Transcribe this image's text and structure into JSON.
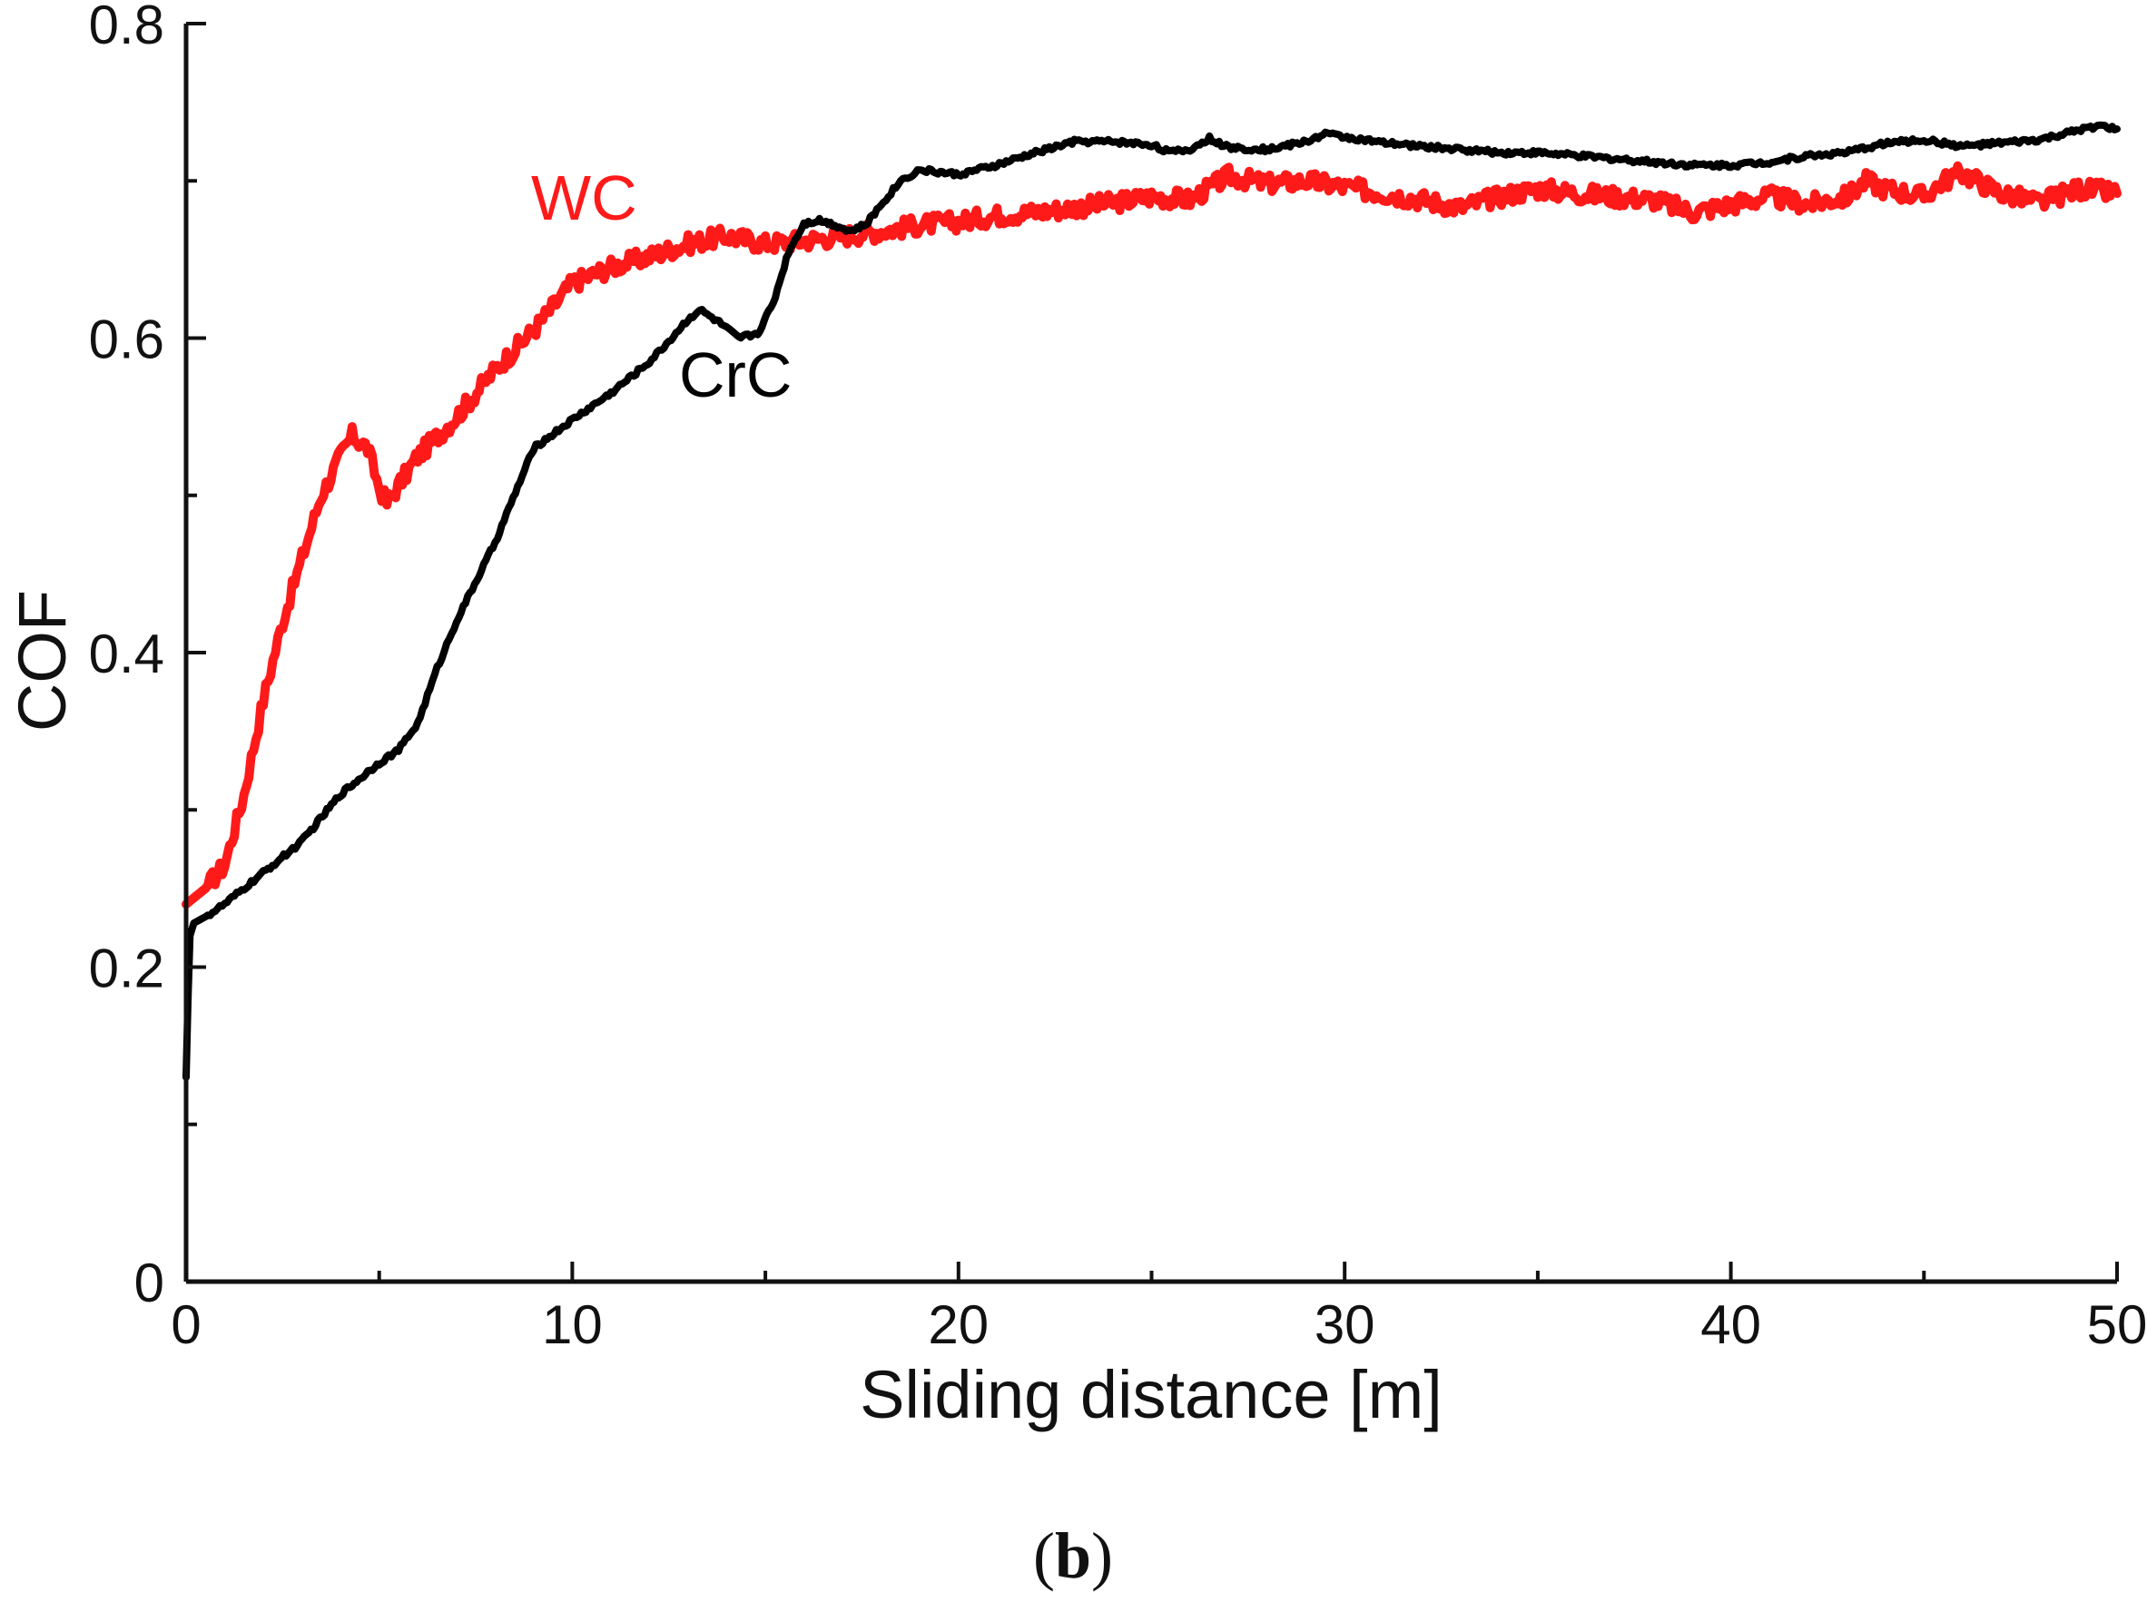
{
  "chart_data": {
    "type": "line",
    "xlabel": "Sliding distance [m]",
    "ylabel": "COF",
    "xlim": [
      0,
      50
    ],
    "ylim": [
      0,
      0.8
    ],
    "xticks": [
      0,
      10,
      20,
      30,
      40,
      50
    ],
    "xtick_labels": [
      "0",
      "10",
      "20",
      "30",
      "40",
      "50"
    ],
    "yticks": [
      0,
      0.2,
      0.4,
      0.6,
      0.8
    ],
    "ytick_labels": [
      "0",
      "0.2",
      "0.4",
      "0.6",
      "0.8"
    ],
    "grid": false,
    "panel_label": {
      "open": "(",
      "letter": "b",
      "close": ")"
    },
    "series": [
      {
        "name": "WC",
        "label": "WC",
        "color": "#ff1a1a",
        "noise": 0.006,
        "x": [
          0,
          0.5,
          1,
          1.5,
          2,
          2.5,
          3,
          3.5,
          4,
          4.3,
          4.7,
          5,
          5.2,
          5.6,
          6,
          7,
          8,
          9,
          10,
          11,
          12,
          13,
          14,
          15,
          16,
          17,
          18,
          19,
          20,
          21,
          22,
          23,
          24,
          25,
          26,
          27,
          28,
          29,
          30,
          31,
          32,
          33,
          34,
          35,
          36,
          37,
          38,
          39,
          40,
          41,
          42,
          43,
          43.5,
          44,
          45,
          45.5,
          46,
          47,
          48,
          49,
          50
        ],
        "y": [
          0.24,
          0.25,
          0.265,
          0.31,
          0.37,
          0.42,
          0.46,
          0.5,
          0.525,
          0.538,
          0.53,
          0.505,
          0.495,
          0.51,
          0.525,
          0.55,
          0.58,
          0.605,
          0.635,
          0.645,
          0.652,
          0.66,
          0.665,
          0.66,
          0.662,
          0.665,
          0.668,
          0.672,
          0.674,
          0.678,
          0.68,
          0.683,
          0.686,
          0.69,
          0.688,
          0.703,
          0.698,
          0.7,
          0.696,
          0.692,
          0.688,
          0.683,
          0.69,
          0.695,
          0.692,
          0.69,
          0.688,
          0.68,
          0.685,
          0.69,
          0.685,
          0.69,
          0.7,
          0.695,
          0.69,
          0.7,
          0.705,
          0.692,
          0.686,
          0.695,
          0.692
        ]
      },
      {
        "name": "CrC",
        "label": "CrC",
        "color": "#000000",
        "noise": 0.0015,
        "x": [
          0,
          0.05,
          0.1,
          0.2,
          0.5,
          1,
          1.5,
          2,
          3,
          4,
          5,
          5.5,
          6,
          6.5,
          7,
          8,
          9,
          10,
          11,
          12,
          12.5,
          13,
          13.3,
          13.8,
          14.3,
          14.8,
          15.2,
          15.6,
          16,
          16.4,
          16.8,
          17.2,
          17.6,
          18,
          18.5,
          19,
          20,
          21,
          22,
          23,
          24,
          25,
          25.5,
          26,
          26.5,
          27,
          28,
          29,
          29.5,
          30,
          31,
          32,
          33,
          34,
          35,
          36,
          37,
          38,
          39,
          40,
          41,
          42,
          43,
          44,
          45,
          46,
          47,
          48,
          49,
          49.5,
          50
        ],
        "y": [
          0.13,
          0.18,
          0.22,
          0.228,
          0.232,
          0.24,
          0.25,
          0.26,
          0.28,
          0.31,
          0.33,
          0.338,
          0.355,
          0.39,
          0.42,
          0.47,
          0.53,
          0.548,
          0.565,
          0.585,
          0.598,
          0.612,
          0.618,
          0.61,
          0.6,
          0.603,
          0.622,
          0.655,
          0.673,
          0.675,
          0.672,
          0.668,
          0.672,
          0.685,
          0.7,
          0.707,
          0.704,
          0.71,
          0.718,
          0.725,
          0.725,
          0.723,
          0.718,
          0.72,
          0.727,
          0.721,
          0.72,
          0.725,
          0.73,
          0.728,
          0.724,
          0.722,
          0.72,
          0.718,
          0.718,
          0.716,
          0.714,
          0.712,
          0.71,
          0.71,
          0.712,
          0.716,
          0.718,
          0.724,
          0.726,
          0.722,
          0.724,
          0.726,
          0.732,
          0.735,
          0.733
        ]
      }
    ]
  }
}
